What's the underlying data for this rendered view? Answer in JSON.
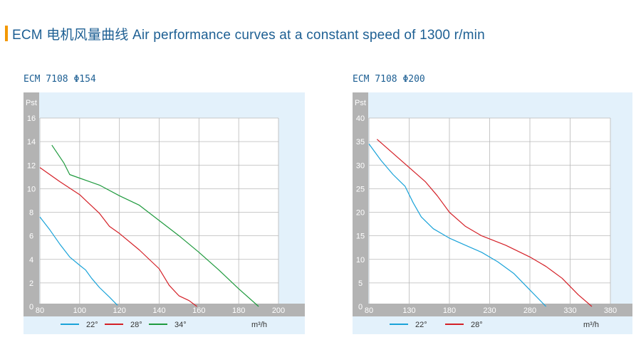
{
  "header": {
    "title": "ECM 电机风量曲线 Air performance curves at a constant speed of 1300 r/min",
    "accent_color": "#f39800",
    "title_color": "#1d5f93"
  },
  "chart_data": [
    {
      "type": "line",
      "title": "ECM 7108 Φ154",
      "ylabel": "Pst",
      "xlabel": "m³/h",
      "x_ticks": [
        80,
        100,
        120,
        140,
        160,
        180,
        200
      ],
      "y_ticks": [
        0,
        2,
        4,
        6,
        8,
        10,
        12,
        14,
        16
      ],
      "xlim": [
        80,
        200
      ],
      "ylim": [
        0,
        16
      ],
      "grid": true,
      "legend_position": "bottom",
      "series": [
        {
          "name": "22°",
          "color": "#1aa3d9",
          "points": [
            [
              80,
              7.6
            ],
            [
              85,
              6.5
            ],
            [
              90,
              5.3
            ],
            [
              95,
              4.2
            ],
            [
              100,
              3.5
            ],
            [
              103,
              3.1
            ],
            [
              106,
              2.4
            ],
            [
              110,
              1.6
            ],
            [
              115,
              0.8
            ],
            [
              119,
              0.1
            ]
          ]
        },
        {
          "name": "28°",
          "color": "#d42027",
          "points": [
            [
              80,
              11.8
            ],
            [
              90,
              10.6
            ],
            [
              100,
              9.5
            ],
            [
              110,
              7.9
            ],
            [
              115,
              6.8
            ],
            [
              120,
              6.2
            ],
            [
              130,
              4.8
            ],
            [
              140,
              3.2
            ],
            [
              145,
              1.8
            ],
            [
              150,
              0.9
            ],
            [
              155,
              0.5
            ],
            [
              159,
              0.0
            ]
          ]
        },
        {
          "name": "34°",
          "color": "#1f9a3e",
          "points": [
            [
              86,
              13.7
            ],
            [
              92,
              12.2
            ],
            [
              95,
              11.2
            ],
            [
              100,
              10.9
            ],
            [
              110,
              10.3
            ],
            [
              120,
              9.4
            ],
            [
              130,
              8.6
            ],
            [
              140,
              7.3
            ],
            [
              150,
              6.0
            ],
            [
              160,
              4.6
            ],
            [
              170,
              3.1
            ],
            [
              180,
              1.5
            ],
            [
              190,
              0.0
            ]
          ]
        }
      ]
    },
    {
      "type": "line",
      "title": "ECM 7108 Φ200",
      "ylabel": "Pst",
      "xlabel": "m³/h",
      "x_ticks": [
        80,
        130,
        180,
        230,
        280,
        330,
        380
      ],
      "y_ticks": [
        0,
        5,
        10,
        15,
        20,
        25,
        30,
        35,
        40
      ],
      "xlim": [
        80,
        380
      ],
      "ylim": [
        0,
        40
      ],
      "grid": true,
      "legend_position": "bottom",
      "series": [
        {
          "name": "22°",
          "color": "#1aa3d9",
          "points": [
            [
              80,
              34.5
            ],
            [
              95,
              31.0
            ],
            [
              110,
              28.0
            ],
            [
              125,
              25.5
            ],
            [
              135,
              22.0
            ],
            [
              145,
              19.0
            ],
            [
              160,
              16.5
            ],
            [
              180,
              14.5
            ],
            [
              200,
              13.0
            ],
            [
              220,
              11.5
            ],
            [
              240,
              9.5
            ],
            [
              260,
              7.0
            ],
            [
              280,
              3.5
            ],
            [
              300,
              0.0
            ]
          ]
        },
        {
          "name": "28°",
          "color": "#d42027",
          "points": [
            [
              90,
              35.5
            ],
            [
              110,
              32.5
            ],
            [
              130,
              29.5
            ],
            [
              150,
              26.5
            ],
            [
              165,
              23.5
            ],
            [
              180,
              20.0
            ],
            [
              200,
              17.0
            ],
            [
              220,
              15.0
            ],
            [
              250,
              13.0
            ],
            [
              280,
              10.5
            ],
            [
              300,
              8.5
            ],
            [
              320,
              6.0
            ],
            [
              340,
              2.5
            ],
            [
              357,
              0.0
            ]
          ]
        }
      ]
    }
  ]
}
